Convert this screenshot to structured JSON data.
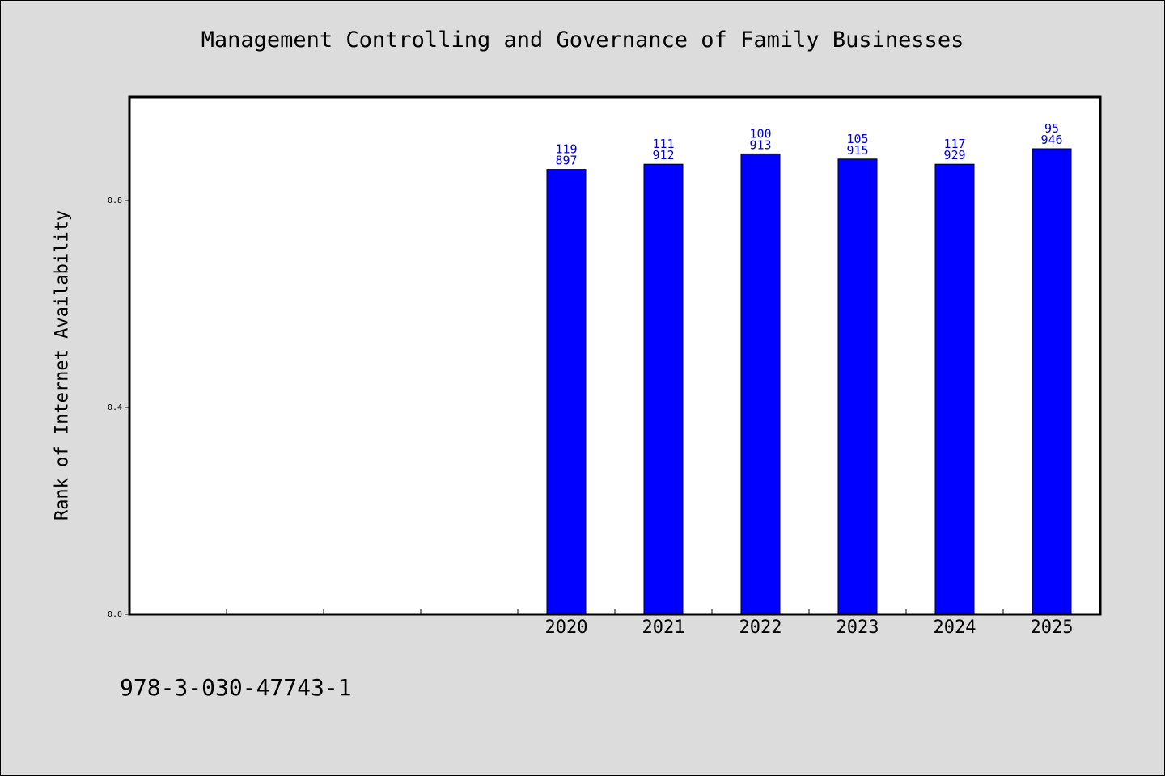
{
  "chart_data": {
    "type": "bar",
    "title": "Management Controlling and Governance of Family Businesses",
    "xlabel": "",
    "ylabel": "Rank of Internet Availability",
    "categories": [
      "",
      "",
      "",
      "",
      "2020",
      "2021",
      "2022",
      "2023",
      "2024",
      "2025"
    ],
    "values": [
      null,
      null,
      null,
      null,
      0.86,
      0.87,
      0.89,
      0.88,
      0.87,
      0.9
    ],
    "bar_labels_top": [
      "",
      "",
      "",
      "",
      "119",
      "111",
      "100",
      "105",
      "117",
      "95"
    ],
    "bar_labels_bottom": [
      "",
      "",
      "",
      "",
      "897",
      "912",
      "913",
      "915",
      "929",
      "946"
    ],
    "yticks": [
      0.0,
      0.4,
      0.8
    ],
    "ytick_labels": [
      "0.0",
      "0.4",
      "0.8"
    ],
    "ylim": [
      0,
      1.0
    ],
    "grid": false,
    "bar_color": "#0000ff",
    "label_color": "#0000cc"
  },
  "footer": {
    "isbn": "978-3-030-47743-1"
  }
}
